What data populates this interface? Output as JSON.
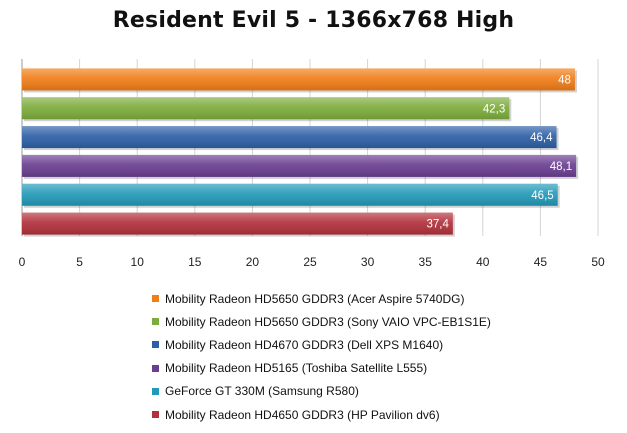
{
  "chart_data": {
    "type": "bar",
    "orientation": "horizontal",
    "title": "Resident Evil 5 - 1366x768 High",
    "xlim": [
      0,
      50
    ],
    "x_ticks": [
      0,
      5,
      10,
      15,
      20,
      25,
      30,
      35,
      40,
      45,
      50
    ],
    "grid": "vertical",
    "legend_position": "bottom",
    "series": [
      {
        "name": "Mobility Radeon HD5650 GDDR3 (Acer Aspire 5740DG)",
        "value": 48,
        "label": "48",
        "color": "#f07d17"
      },
      {
        "name": "Mobility Radeon HD5650 GDDR3 (Sony VAIO VPC-EB1S1E)",
        "value": 42.3,
        "label": "42,3",
        "color": "#7cac3b"
      },
      {
        "name": "Mobility Radeon HD4670 GDDR3 (Dell XPS M1640)",
        "value": 46.4,
        "label": "46,4",
        "color": "#2d5fa6"
      },
      {
        "name": "Mobility Radeon HD5165 (Toshiba Satellite L555)",
        "value": 48.1,
        "label": "48,1",
        "color": "#6a3e91"
      },
      {
        "name": "GeForce GT 330M (Samsung R580)",
        "value": 46.5,
        "label": "46,5",
        "color": "#2299b8"
      },
      {
        "name": "Mobility Radeon HD4650 GDDR3 (HP Pavilion dv6)",
        "value": 37.4,
        "label": "37,4",
        "color": "#b1303b"
      }
    ]
  }
}
